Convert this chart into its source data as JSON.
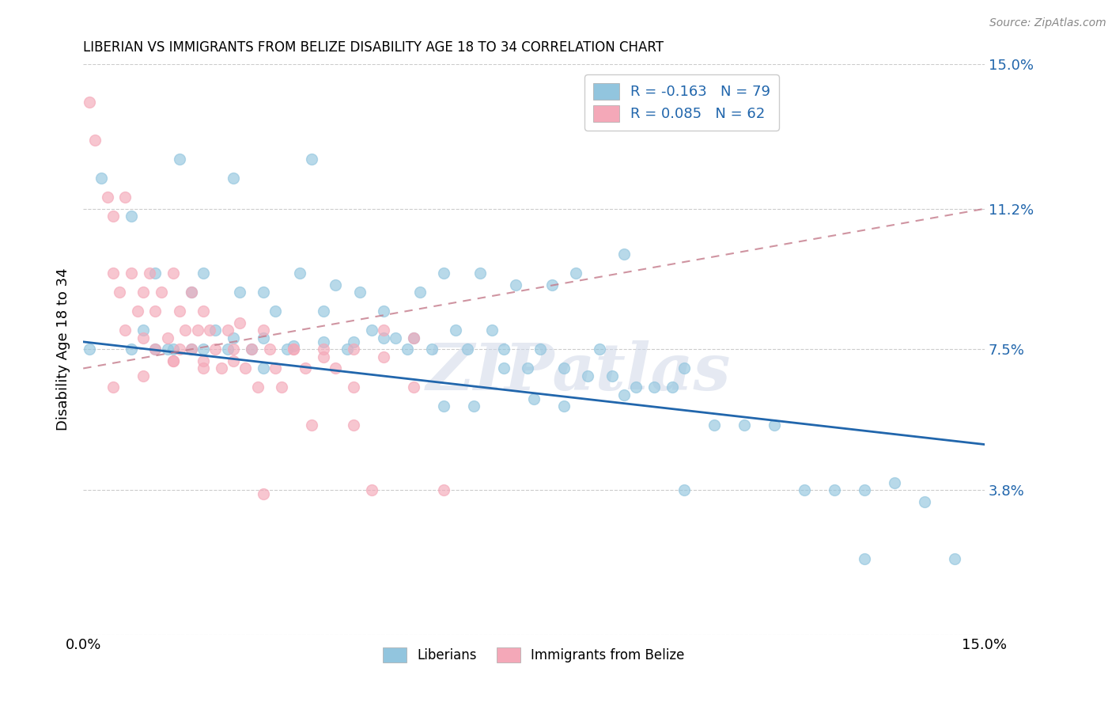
{
  "title": "LIBERIAN VS IMMIGRANTS FROM BELIZE DISABILITY AGE 18 TO 34 CORRELATION CHART",
  "source": "Source: ZipAtlas.com",
  "ylabel": "Disability Age 18 to 34",
  "xlim": [
    0.0,
    0.15
  ],
  "ylim": [
    0.0,
    0.15
  ],
  "ytick_vals": [
    0.0,
    0.038,
    0.075,
    0.112,
    0.15
  ],
  "ytick_labels_right": [
    "",
    "3.8%",
    "7.5%",
    "11.2%",
    "15.0%"
  ],
  "xtick_vals": [
    0.0,
    0.03,
    0.06,
    0.09,
    0.12,
    0.15
  ],
  "xtick_labels": [
    "0.0%",
    "",
    "",
    "",
    "",
    "15.0%"
  ],
  "grid_color": "#cccccc",
  "blue_color": "#92c5de",
  "pink_color": "#f4a8b8",
  "blue_line_color": "#2166ac",
  "pink_line_color": "#c47a8a",
  "R_blue": -0.163,
  "N_blue": 79,
  "R_pink": 0.085,
  "N_pink": 62,
  "legend_label_blue": "Liberians",
  "legend_label_pink": "Immigrants from Belize",
  "watermark": "ZIPatlas",
  "blue_scatter_x": [
    0.001,
    0.003,
    0.008,
    0.01,
    0.012,
    0.014,
    0.016,
    0.018,
    0.018,
    0.02,
    0.022,
    0.024,
    0.025,
    0.026,
    0.028,
    0.03,
    0.03,
    0.032,
    0.034,
    0.036,
    0.038,
    0.04,
    0.042,
    0.044,
    0.046,
    0.048,
    0.05,
    0.052,
    0.054,
    0.056,
    0.058,
    0.06,
    0.062,
    0.064,
    0.066,
    0.068,
    0.07,
    0.072,
    0.074,
    0.076,
    0.078,
    0.08,
    0.082,
    0.084,
    0.086,
    0.088,
    0.09,
    0.092,
    0.095,
    0.098,
    0.1,
    0.105,
    0.11,
    0.115,
    0.12,
    0.125,
    0.13,
    0.135,
    0.14,
    0.145,
    0.008,
    0.012,
    0.015,
    0.02,
    0.025,
    0.03,
    0.035,
    0.04,
    0.045,
    0.05,
    0.055,
    0.06,
    0.065,
    0.07,
    0.075,
    0.08,
    0.09,
    0.1,
    0.13
  ],
  "blue_scatter_y": [
    0.075,
    0.12,
    0.11,
    0.08,
    0.095,
    0.075,
    0.125,
    0.09,
    0.075,
    0.095,
    0.08,
    0.075,
    0.12,
    0.09,
    0.075,
    0.09,
    0.07,
    0.085,
    0.075,
    0.095,
    0.125,
    0.085,
    0.092,
    0.075,
    0.09,
    0.08,
    0.085,
    0.078,
    0.075,
    0.09,
    0.075,
    0.095,
    0.08,
    0.075,
    0.095,
    0.08,
    0.075,
    0.092,
    0.07,
    0.075,
    0.092,
    0.07,
    0.095,
    0.068,
    0.075,
    0.068,
    0.1,
    0.065,
    0.065,
    0.065,
    0.07,
    0.055,
    0.055,
    0.055,
    0.038,
    0.038,
    0.038,
    0.04,
    0.035,
    0.02,
    0.075,
    0.075,
    0.075,
    0.075,
    0.078,
    0.078,
    0.076,
    0.077,
    0.077,
    0.078,
    0.078,
    0.06,
    0.06,
    0.07,
    0.062,
    0.06,
    0.063,
    0.038,
    0.02
  ],
  "pink_scatter_x": [
    0.001,
    0.002,
    0.004,
    0.005,
    0.005,
    0.006,
    0.007,
    0.007,
    0.008,
    0.009,
    0.01,
    0.01,
    0.011,
    0.012,
    0.012,
    0.013,
    0.014,
    0.015,
    0.015,
    0.016,
    0.016,
    0.017,
    0.018,
    0.018,
    0.019,
    0.02,
    0.02,
    0.021,
    0.022,
    0.023,
    0.024,
    0.025,
    0.026,
    0.027,
    0.028,
    0.029,
    0.03,
    0.031,
    0.032,
    0.033,
    0.035,
    0.037,
    0.04,
    0.042,
    0.045,
    0.048,
    0.05,
    0.055,
    0.06,
    0.005,
    0.01,
    0.015,
    0.02,
    0.025,
    0.03,
    0.035,
    0.04,
    0.045,
    0.05,
    0.055,
    0.038,
    0.045
  ],
  "pink_scatter_y": [
    0.14,
    0.13,
    0.115,
    0.11,
    0.095,
    0.09,
    0.115,
    0.08,
    0.095,
    0.085,
    0.09,
    0.078,
    0.095,
    0.085,
    0.075,
    0.09,
    0.078,
    0.095,
    0.072,
    0.085,
    0.075,
    0.08,
    0.09,
    0.075,
    0.08,
    0.085,
    0.072,
    0.08,
    0.075,
    0.07,
    0.08,
    0.075,
    0.082,
    0.07,
    0.075,
    0.065,
    0.08,
    0.075,
    0.07,
    0.065,
    0.075,
    0.07,
    0.075,
    0.07,
    0.055,
    0.038,
    0.08,
    0.065,
    0.038,
    0.065,
    0.068,
    0.072,
    0.07,
    0.072,
    0.037,
    0.075,
    0.073,
    0.075,
    0.073,
    0.078,
    0.055,
    0.065
  ]
}
